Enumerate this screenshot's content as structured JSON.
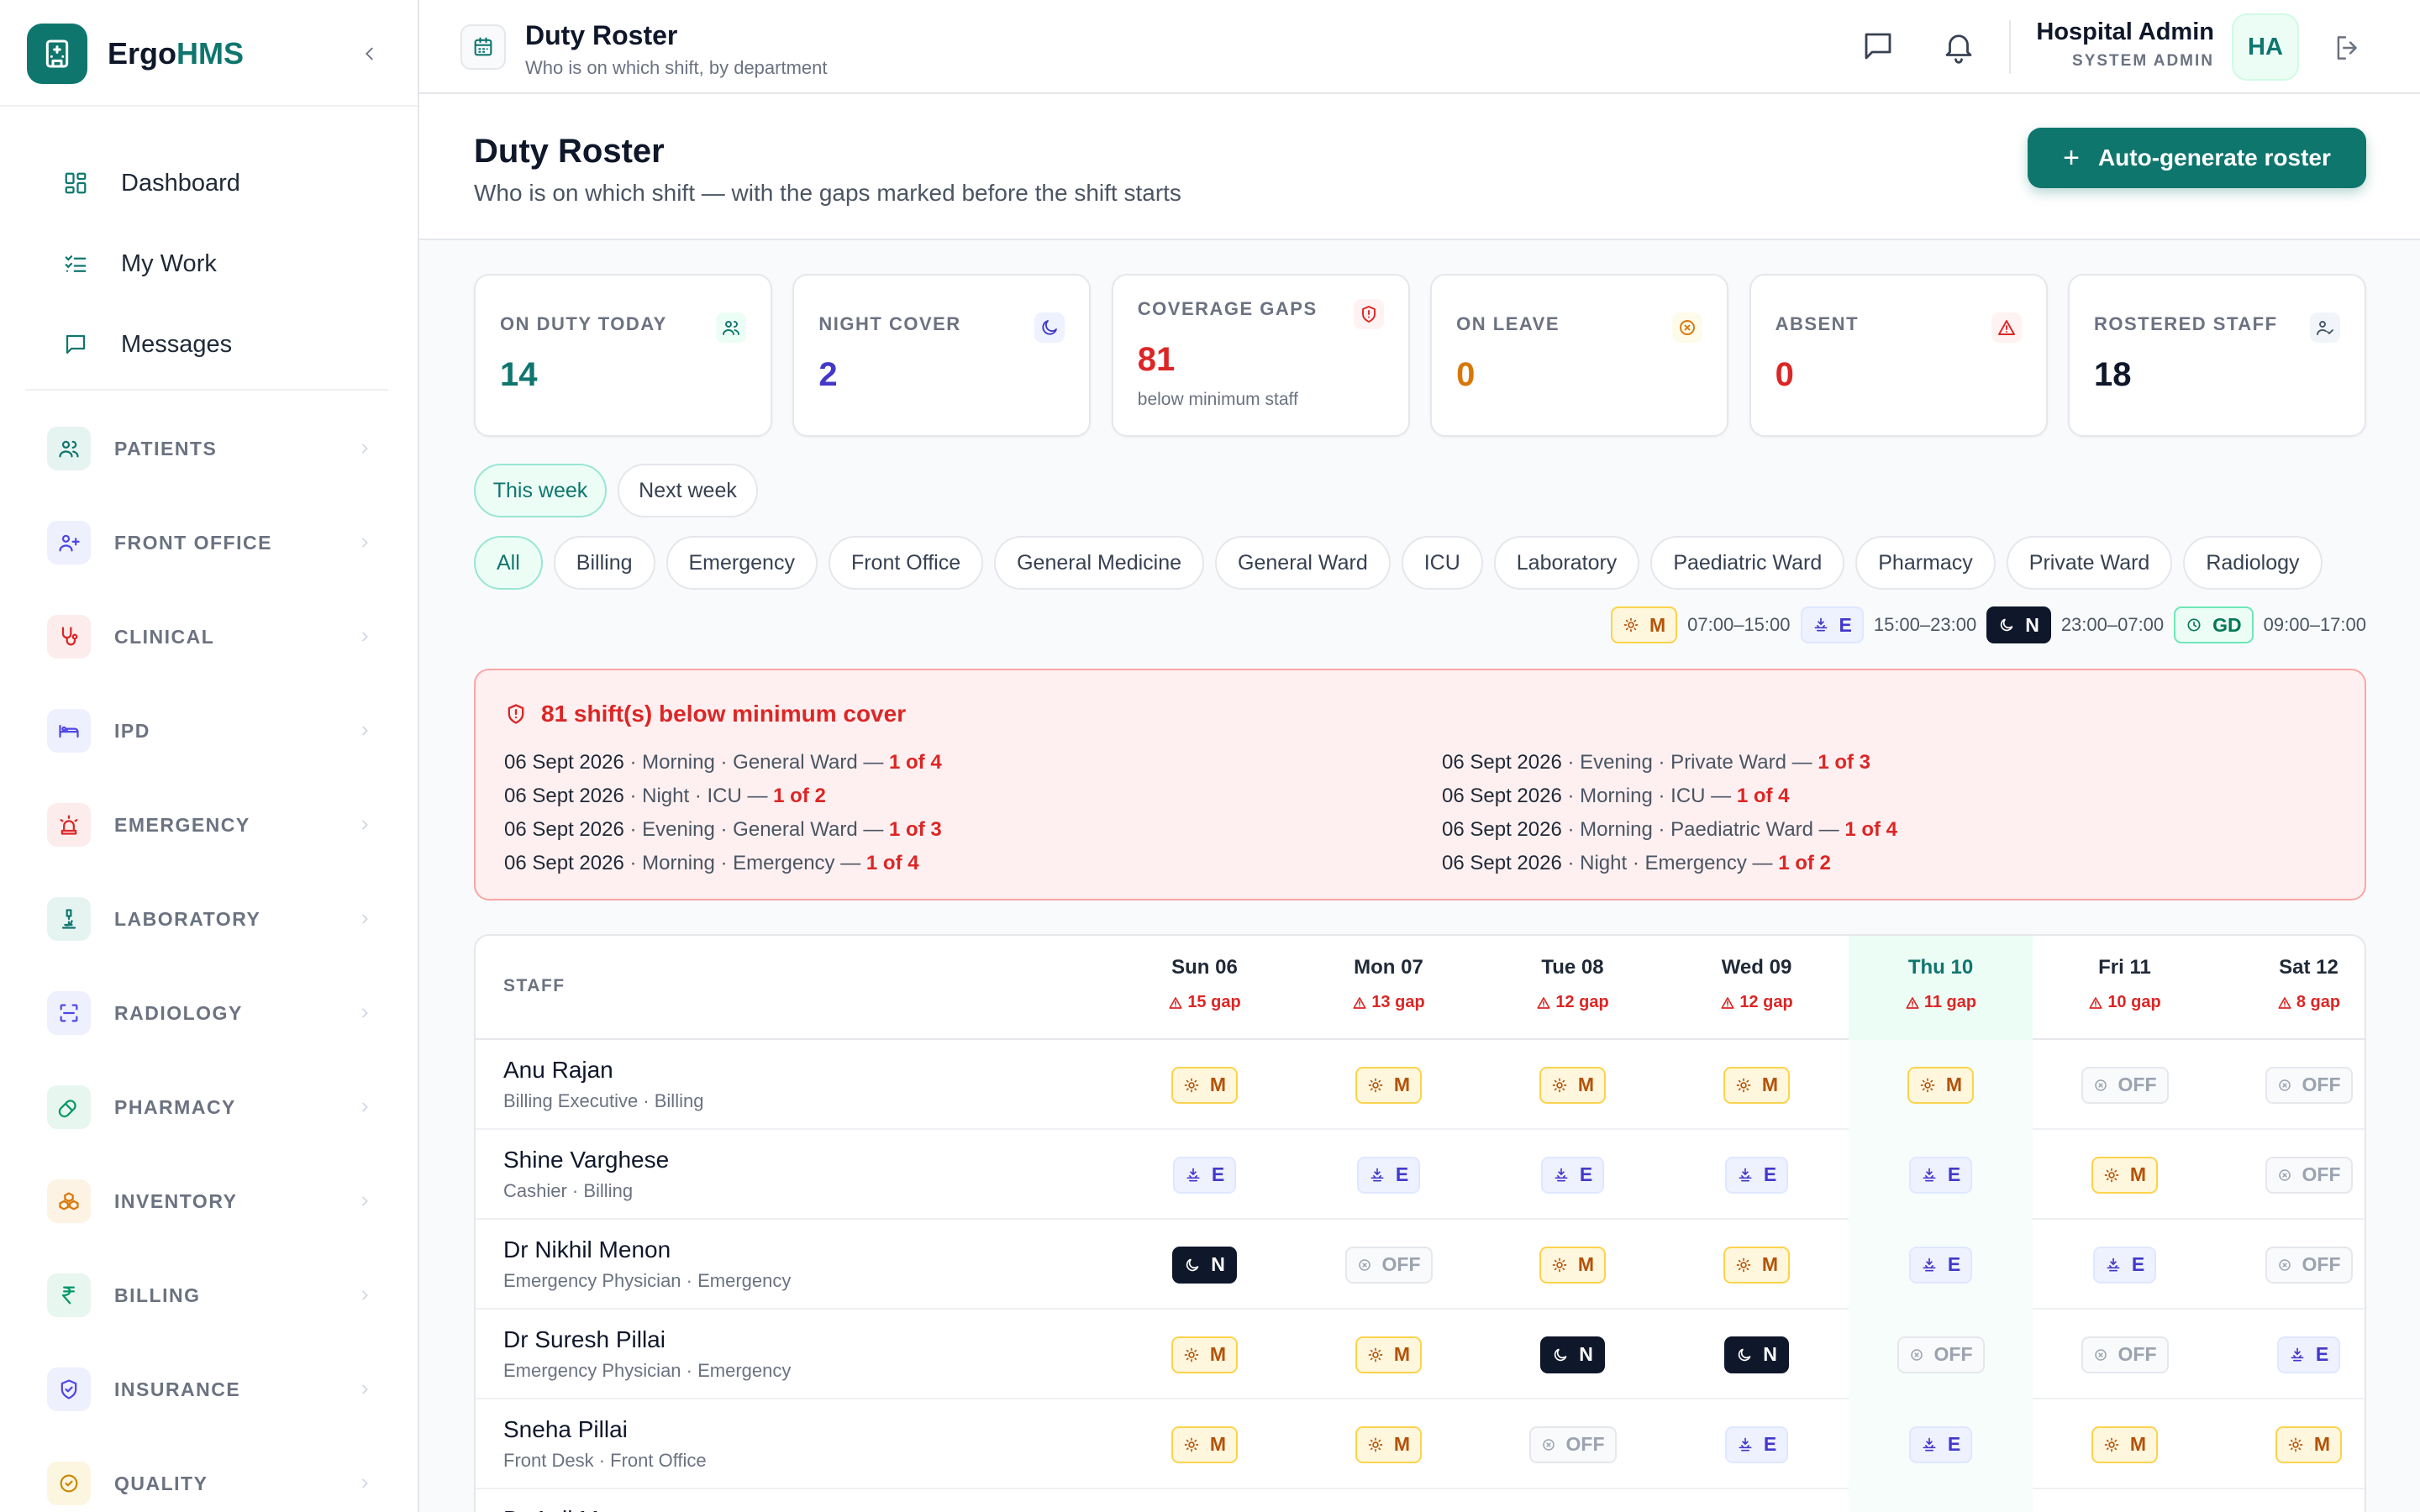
{
  "brand": {
    "name_a": "Ergo",
    "name_b": "HMS"
  },
  "sidebar": {
    "top_items": [
      {
        "label": "Dashboard",
        "icon": "dashboard-icon"
      },
      {
        "label": "My Work",
        "icon": "checklist-icon"
      },
      {
        "label": "Messages",
        "icon": "message-icon"
      }
    ],
    "groups": [
      {
        "label": "PATIENTS",
        "icon": "users-icon",
        "color": "#0f766e"
      },
      {
        "label": "FRONT OFFICE",
        "icon": "user-plus-icon",
        "color": "#4f46e5"
      },
      {
        "label": "CLINICAL",
        "icon": "stethoscope-icon",
        "color": "#dc2626"
      },
      {
        "label": "IPD",
        "icon": "bed-icon",
        "color": "#4f46e5"
      },
      {
        "label": "EMERGENCY",
        "icon": "siren-icon",
        "color": "#dc2626"
      },
      {
        "label": "LABORATORY",
        "icon": "microscope-icon",
        "color": "#0f766e"
      },
      {
        "label": "RADIOLOGY",
        "icon": "scan-icon",
        "color": "#4f46e5"
      },
      {
        "label": "PHARMACY",
        "icon": "pill-icon",
        "color": "#059669"
      },
      {
        "label": "INVENTORY",
        "icon": "boxes-icon",
        "color": "#d97706"
      },
      {
        "label": "BILLING",
        "icon": "rupee-icon",
        "color": "#059669"
      },
      {
        "label": "INSURANCE",
        "icon": "shield-icon",
        "color": "#4f46e5"
      },
      {
        "label": "QUALITY",
        "icon": "badge-check-icon",
        "color": "#ca8a04"
      }
    ]
  },
  "topbar": {
    "title": "Duty Roster",
    "subtitle": "Who is on which shift, by department",
    "user_name": "Hospital Admin",
    "user_role": "SYSTEM ADMIN",
    "avatar": "HA"
  },
  "page": {
    "title": "Duty Roster",
    "subtitle": "Who is on which shift — with the gaps marked before the shift starts",
    "auto_button": "Auto-generate roster"
  },
  "stats": [
    {
      "label": "ON DUTY TODAY",
      "value": "14",
      "color": "#0f766e",
      "icon": "users-icon"
    },
    {
      "label": "NIGHT COVER",
      "value": "2",
      "color": "#4338ca",
      "icon": "moon-icon"
    },
    {
      "label": "COVERAGE GAPS",
      "value": "81",
      "note": "below minimum staff",
      "color": "#dc2626",
      "icon": "shield-alert-icon"
    },
    {
      "label": "ON LEAVE",
      "value": "0",
      "color": "#d97706",
      "icon": "x-circle-icon"
    },
    {
      "label": "ABSENT",
      "value": "0",
      "color": "#dc2626",
      "icon": "warning-icon"
    },
    {
      "label": "ROSTERED STAFF",
      "value": "18",
      "color": "#0f172a",
      "icon": "user-check-icon"
    }
  ],
  "week_tabs": [
    "This week",
    "Next week"
  ],
  "departments": [
    "All",
    "Billing",
    "Emergency",
    "Front Office",
    "General Medicine",
    "General Ward",
    "ICU",
    "Laboratory",
    "Paediatric Ward",
    "Pharmacy",
    "Private Ward",
    "Radiology"
  ],
  "legend": [
    {
      "code": "M",
      "time": "07:00–15:00"
    },
    {
      "code": "E",
      "time": "15:00–23:00"
    },
    {
      "code": "N",
      "time": "23:00–07:00"
    },
    {
      "code": "GD",
      "time": "09:00–17:00"
    }
  ],
  "alert": {
    "title": "81 shift(s) below minimum cover",
    "left": [
      {
        "date": "06 Sept 2026",
        "detail": " · Morning · General Ward — ",
        "count": "1 of 4"
      },
      {
        "date": "06 Sept 2026",
        "detail": " · Night · ICU — ",
        "count": "1 of 2"
      },
      {
        "date": "06 Sept 2026",
        "detail": " · Evening · General Ward — ",
        "count": "1 of 3"
      },
      {
        "date": "06 Sept 2026",
        "detail": " · Morning · Emergency — ",
        "count": "1 of 4"
      }
    ],
    "right": [
      {
        "date": "06 Sept 2026",
        "detail": " · Evening · Private Ward — ",
        "count": "1 of 3"
      },
      {
        "date": "06 Sept 2026",
        "detail": " · Morning · ICU — ",
        "count": "1 of 4"
      },
      {
        "date": "06 Sept 2026",
        "detail": " · Morning · Paediatric Ward — ",
        "count": "1 of 4"
      },
      {
        "date": "06 Sept 2026",
        "detail": " · Night · Emergency — ",
        "count": "1 of 2"
      }
    ]
  },
  "roster": {
    "staff_header": "STAFF",
    "days": [
      {
        "label": "Sun 06",
        "gap": "15 gap"
      },
      {
        "label": "Mon 07",
        "gap": "13 gap"
      },
      {
        "label": "Tue 08",
        "gap": "12 gap"
      },
      {
        "label": "Wed 09",
        "gap": "12 gap"
      },
      {
        "label": "Thu 10",
        "gap": "11 gap",
        "today": true
      },
      {
        "label": "Fri 11",
        "gap": "10 gap"
      },
      {
        "label": "Sat 12",
        "gap": "8 gap"
      }
    ],
    "rows": [
      {
        "name": "Anu Rajan",
        "role": "Billing Executive · Billing",
        "shifts": [
          "M",
          "M",
          "M",
          "M",
          "M",
          "OFF",
          "OFF"
        ]
      },
      {
        "name": "Shine Varghese",
        "role": "Cashier · Billing",
        "shifts": [
          "E",
          "E",
          "E",
          "E",
          "E",
          "M",
          "OFF"
        ]
      },
      {
        "name": "Dr Nikhil Menon",
        "role": "Emergency Physician · Emergency",
        "shifts": [
          "N",
          "OFF",
          "M",
          "M",
          "E",
          "E",
          "OFF"
        ]
      },
      {
        "name": "Dr Suresh Pillai",
        "role": "Emergency Physician · Emergency",
        "shifts": [
          "M",
          "M",
          "N",
          "N",
          "OFF",
          "OFF",
          "E"
        ]
      },
      {
        "name": "Sneha Pillai",
        "role": "Front Desk · Front Office",
        "shifts": [
          "M",
          "M",
          "OFF",
          "E",
          "E",
          "M",
          "M"
        ]
      },
      {
        "name": "Dr Anil M",
        "role": "",
        "shifts": [
          "",
          "",
          "",
          "",
          "",
          "",
          ""
        ]
      }
    ]
  }
}
